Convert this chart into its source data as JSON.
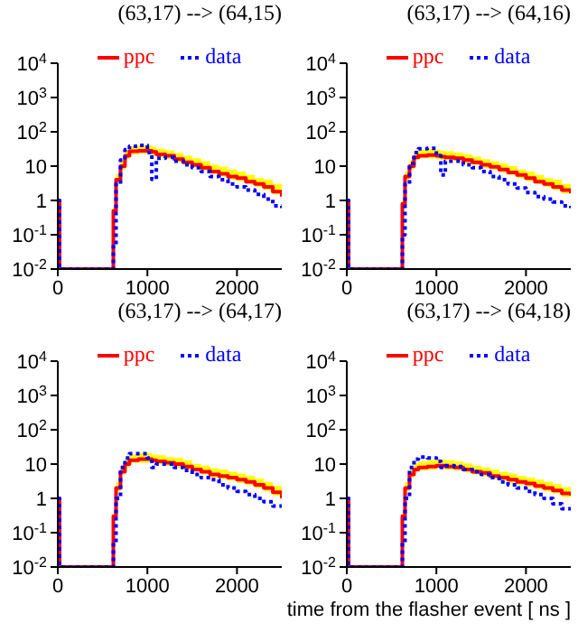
{
  "chart_data": [
    {
      "type": "step",
      "title": "(63,17) --> (64,15)",
      "x": [
        0,
        20,
        600,
        620,
        650,
        700,
        750,
        800,
        900,
        1000,
        1050,
        1100,
        1200,
        1300,
        1400,
        1500,
        1600,
        1700,
        1800,
        1900,
        2000,
        2100,
        2200,
        2300,
        2400,
        2500
      ],
      "xlim": [
        0,
        2500
      ],
      "xticks": [
        0,
        1000,
        2000
      ],
      "ylim": [
        0.01,
        10000
      ],
      "yticks": [
        {
          "value": 10000,
          "label": "10$^{4}$"
        },
        {
          "value": 1000,
          "label": "10$^{3}$"
        },
        {
          "value": 100,
          "label": "10$^{2}$"
        },
        {
          "value": 10,
          "label": "10"
        },
        {
          "value": 1,
          "label": "1"
        },
        {
          "value": 0.1,
          "label": "10$^{-1}$"
        },
        {
          "value": 0.01,
          "label": "10$^{-2}$"
        }
      ],
      "log": "y",
      "legend": "top",
      "series": [
        {
          "name": "ppc",
          "color": "#ff0000",
          "line_style": "solid",
          "values": [
            1,
            0.01,
            0.01,
            0.5,
            4,
            10,
            20,
            27,
            28,
            28,
            26,
            22,
            20,
            16,
            13,
            11,
            9,
            7,
            6,
            5,
            4.5,
            3.5,
            3,
            2.5,
            1.8,
            1.3
          ],
          "lower": [
            1,
            0.01,
            0.01,
            0.4,
            3,
            8,
            16,
            22,
            23,
            23,
            21,
            18,
            16,
            13,
            11,
            9,
            7.5,
            6,
            5,
            4,
            3.7,
            3,
            2.5,
            2,
            1.5,
            1.1
          ],
          "upper": [
            1,
            0.01,
            0.01,
            0.7,
            6,
            15,
            30,
            38,
            40,
            40,
            37,
            32,
            29,
            24,
            20,
            17,
            14,
            11,
            9.5,
            8,
            7,
            5.5,
            4.5,
            4,
            3,
            2
          ]
        },
        {
          "name": "data",
          "color": "#0000ff",
          "line_style": "dotted",
          "values": [
            1,
            0.01,
            0.01,
            0.05,
            3,
            15,
            30,
            38,
            40,
            25,
            4.1,
            17,
            18,
            14,
            11,
            9,
            7,
            5,
            4,
            3,
            2.5,
            2,
            1.5,
            1.1,
            0.7,
            0.6
          ]
        }
      ]
    },
    {
      "type": "step",
      "title": "(63,17) --> (64,16)",
      "x": [
        0,
        20,
        600,
        620,
        650,
        700,
        750,
        800,
        900,
        1000,
        1050,
        1100,
        1200,
        1300,
        1400,
        1500,
        1600,
        1700,
        1800,
        1900,
        2000,
        2100,
        2200,
        2300,
        2400,
        2500
      ],
      "xlim": [
        0,
        2500
      ],
      "xticks": [
        0,
        1000,
        2000
      ],
      "ylim": [
        0.01,
        10000
      ],
      "yticks": [
        {
          "value": 10000,
          "label": "10$^{4}$"
        },
        {
          "value": 1000,
          "label": "10$^{3}$"
        },
        {
          "value": 100,
          "label": "10$^{2}$"
        },
        {
          "value": 10,
          "label": "10"
        },
        {
          "value": 1,
          "label": "1"
        },
        {
          "value": 0.1,
          "label": "10$^{-1}$"
        },
        {
          "value": 0.01,
          "label": "10$^{-2}$"
        }
      ],
      "log": "y",
      "legend": "top",
      "series": [
        {
          "name": "ppc",
          "color": "#ff0000",
          "line_style": "solid",
          "values": [
            1,
            0.01,
            0.01,
            0.8,
            5,
            10,
            18,
            20,
            21,
            20,
            19,
            18,
            17,
            15,
            13,
            11,
            9.5,
            8,
            6.5,
            5.5,
            4.5,
            3.5,
            3,
            2.5,
            2,
            1.6
          ],
          "lower": [
            1,
            0.01,
            0.01,
            0.6,
            4,
            8,
            15,
            17,
            17,
            16,
            15,
            15,
            14,
            12,
            11,
            9,
            8,
            6.5,
            5.5,
            4.5,
            3.7,
            3,
            2.5,
            2,
            1.6,
            1.3
          ],
          "upper": [
            1,
            0.01,
            0.01,
            1.2,
            7,
            15,
            27,
            30,
            31,
            30,
            28,
            27,
            25,
            22,
            19,
            16,
            14,
            12,
            10,
            8,
            7,
            5.5,
            4.5,
            4,
            3,
            2.4
          ]
        },
        {
          "name": "data",
          "color": "#0000ff",
          "line_style": "dotted",
          "values": [
            1,
            0.01,
            0.01,
            0.1,
            3,
            12,
            25,
            32,
            33,
            20,
            5.5,
            14,
            14,
            11,
            9,
            7,
            5,
            4,
            3,
            2.3,
            1.7,
            1.3,
            1.1,
            0.9,
            0.7,
            0.6
          ]
        }
      ]
    },
    {
      "type": "step",
      "title": "(63,17) --> (64,17)",
      "x": [
        0,
        20,
        600,
        620,
        650,
        700,
        750,
        800,
        900,
        1000,
        1050,
        1100,
        1200,
        1300,
        1400,
        1500,
        1600,
        1700,
        1800,
        1900,
        2000,
        2100,
        2200,
        2300,
        2400,
        2500
      ],
      "xlim": [
        0,
        2500
      ],
      "xticks": [
        0,
        1000,
        2000
      ],
      "ylim": [
        0.01,
        10000
      ],
      "yticks": [
        {
          "value": 10000,
          "label": "10$^{4}$"
        },
        {
          "value": 1000,
          "label": "10$^{3}$"
        },
        {
          "value": 100,
          "label": "10$^{2}$"
        },
        {
          "value": 10,
          "label": "10"
        },
        {
          "value": 1,
          "label": "1"
        },
        {
          "value": 0.1,
          "label": "10$^{-1}$"
        },
        {
          "value": 0.01,
          "label": "10$^{-2}$"
        }
      ],
      "log": "y",
      "legend": "top",
      "series": [
        {
          "name": "ppc",
          "color": "#ff0000",
          "line_style": "solid",
          "values": [
            1,
            0.01,
            0.01,
            0.3,
            2,
            6,
            10,
            13,
            14,
            14,
            13,
            12,
            11,
            10,
            8.5,
            7,
            6,
            5,
            4.5,
            4,
            3.5,
            3,
            2.5,
            2,
            1.5,
            1
          ],
          "lower": [
            1,
            0.01,
            0.01,
            0.25,
            1.6,
            5,
            8,
            11,
            11,
            11,
            11,
            10,
            9,
            8,
            7,
            6,
            5,
            4,
            3.7,
            3.3,
            2.8,
            2.5,
            2,
            1.6,
            1.2,
            0.8
          ],
          "upper": [
            1,
            0.01,
            0.01,
            0.45,
            3,
            9,
            15,
            19,
            21,
            21,
            19,
            18,
            16,
            15,
            13,
            10,
            9,
            7.5,
            7,
            6,
            5.3,
            4.5,
            3.8,
            3,
            2.3,
            1.5
          ]
        },
        {
          "name": "data",
          "color": "#0000ff",
          "line_style": "dotted",
          "values": [
            1,
            0.01,
            0.01,
            0.05,
            1,
            8,
            15,
            20,
            20,
            15,
            8,
            10,
            10,
            8,
            6.5,
            5,
            4,
            3.5,
            2.5,
            2,
            1.6,
            1.3,
            1,
            0.8,
            0.6,
            0.5
          ]
        }
      ]
    },
    {
      "type": "step",
      "title": "(63,17) --> (64,18)",
      "xlabel": "time from the flasher event [ ns ]",
      "x": [
        0,
        20,
        600,
        620,
        650,
        700,
        750,
        800,
        900,
        1000,
        1050,
        1100,
        1200,
        1300,
        1400,
        1500,
        1600,
        1700,
        1800,
        1900,
        2000,
        2100,
        2200,
        2300,
        2400,
        2500
      ],
      "xlim": [
        0,
        2500
      ],
      "xticks": [
        0,
        1000,
        2000
      ],
      "ylim": [
        0.01,
        10000
      ],
      "yticks": [
        {
          "value": 10000,
          "label": "10$^{4}$"
        },
        {
          "value": 1000,
          "label": "10$^{3}$"
        },
        {
          "value": 100,
          "label": "10$^{2}$"
        },
        {
          "value": 10,
          "label": "10"
        },
        {
          "value": 1,
          "label": "1"
        },
        {
          "value": 0.1,
          "label": "10$^{-1}$"
        },
        {
          "value": 0.01,
          "label": "10$^{-2}$"
        }
      ],
      "log": "y",
      "legend": "top",
      "series": [
        {
          "name": "ppc",
          "color": "#ff0000",
          "line_style": "solid",
          "values": [
            1,
            0.01,
            0.01,
            0.3,
            2,
            5,
            7,
            8,
            8.5,
            9,
            9,
            8.5,
            8,
            7,
            6,
            5.5,
            4.5,
            4,
            3.5,
            3,
            2.7,
            2.3,
            2,
            1.7,
            1.4,
            1.2
          ],
          "lower": [
            1,
            0.01,
            0.01,
            0.25,
            1.6,
            4,
            6,
            6.5,
            7,
            7.5,
            7.5,
            7,
            6.5,
            5.7,
            5,
            4.5,
            3.7,
            3.3,
            2.8,
            2.5,
            2.2,
            1.9,
            1.6,
            1.4,
            1.1,
            1
          ],
          "upper": [
            1,
            0.01,
            0.01,
            0.45,
            3,
            7.5,
            10.5,
            12,
            13,
            13.5,
            13.5,
            13,
            12,
            10.5,
            9,
            8,
            7,
            6,
            5.3,
            4.5,
            4,
            3.5,
            3,
            2.6,
            2.1,
            1.8
          ]
        },
        {
          "name": "data",
          "color": "#0000ff",
          "line_style": "dotted",
          "values": [
            1,
            0.01,
            0.01,
            0.05,
            1,
            8,
            14,
            16,
            15,
            12,
            8,
            9,
            8.5,
            7,
            6,
            5,
            4,
            3,
            2.5,
            2,
            1.6,
            1.3,
            1,
            0.7,
            0.5,
            0.45
          ]
        }
      ]
    }
  ]
}
